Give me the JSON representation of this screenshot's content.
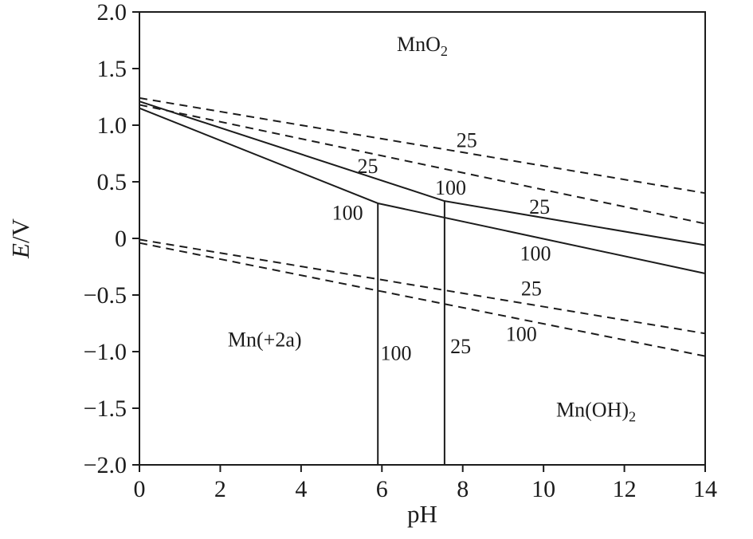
{
  "figure": {
    "background": "#ffffff",
    "line_color": "#1c1c1c"
  },
  "chart_data": {
    "type": "line",
    "title": "",
    "xlabel": "pH",
    "ylabel": "E/V",
    "ylabel_parts": [
      {
        "t": "E",
        "italic": true
      },
      {
        "t": "/V"
      }
    ],
    "xlim": [
      0,
      14
    ],
    "ylim": [
      -2.0,
      2.0
    ],
    "grid": false,
    "legend": "none",
    "frame": true,
    "xticks": {
      "values": [
        0,
        2,
        4,
        6,
        8,
        10,
        12,
        14
      ],
      "labels": [
        "0",
        "2",
        "4",
        "6",
        "8",
        "10",
        "12",
        "14"
      ]
    },
    "yticks": {
      "values": [
        2.0,
        1.5,
        1.0,
        0.5,
        0,
        -0.5,
        -1.0,
        -1.5,
        -2.0
      ],
      "labels": [
        "2.0",
        "1.5",
        "1.0",
        "0.5",
        "0",
        "−0.5",
        "−1.0",
        "−1.5",
        "−2.0"
      ]
    },
    "series": [
      {
        "name": "upper-dashed-25",
        "style": "dashed",
        "temperature_label": "25",
        "points": [
          [
            0,
            1.24
          ],
          [
            14,
            0.4
          ]
        ]
      },
      {
        "name": "upper-dashed-100",
        "style": "dashed",
        "temperature_label": "100",
        "points": [
          [
            0,
            1.18
          ],
          [
            14,
            0.13
          ]
        ]
      },
      {
        "name": "solid-boundary-25",
        "style": "solid",
        "temperature_label": "25",
        "points": [
          [
            0,
            1.21
          ],
          [
            7.55,
            0.33
          ],
          [
            14,
            -0.06
          ]
        ]
      },
      {
        "name": "solid-boundary-100",
        "style": "solid",
        "temperature_label": "100",
        "points": [
          [
            0,
            1.15
          ],
          [
            5.9,
            0.31
          ],
          [
            14,
            -0.31
          ]
        ]
      },
      {
        "name": "lower-dashed-25",
        "style": "dashed",
        "temperature_label": "25",
        "points": [
          [
            0,
            -0.01
          ],
          [
            14,
            -0.84
          ]
        ]
      },
      {
        "name": "lower-dashed-100",
        "style": "dashed",
        "temperature_label": "100",
        "points": [
          [
            0,
            -0.04
          ],
          [
            14,
            -1.04
          ]
        ]
      },
      {
        "name": "vertical-boundary-100",
        "style": "solid",
        "temperature_label": "100",
        "points": [
          [
            5.9,
            0.31
          ],
          [
            5.9,
            -2.0
          ]
        ]
      },
      {
        "name": "vertical-boundary-25",
        "style": "solid",
        "temperature_label": "25",
        "points": [
          [
            7.55,
            0.33
          ],
          [
            7.55,
            -2.0
          ]
        ]
      }
    ],
    "annotations": [
      {
        "parts": [
          {
            "t": "MnO"
          },
          {
            "t": "2",
            "sub": true
          }
        ],
        "x": 7.0,
        "y": 1.72
      },
      {
        "parts": [
          {
            "t": "25"
          }
        ],
        "x": 8.1,
        "y": 0.87
      },
      {
        "parts": [
          {
            "t": "25"
          }
        ],
        "x": 5.65,
        "y": 0.64
      },
      {
        "parts": [
          {
            "t": "100"
          }
        ],
        "x": 7.7,
        "y": 0.45
      },
      {
        "parts": [
          {
            "t": "100"
          }
        ],
        "x": 5.15,
        "y": 0.23
      },
      {
        "parts": [
          {
            "t": "25"
          }
        ],
        "x": 9.9,
        "y": 0.28
      },
      {
        "parts": [
          {
            "t": "100"
          }
        ],
        "x": 9.8,
        "y": -0.13
      },
      {
        "parts": [
          {
            "t": "25"
          }
        ],
        "x": 9.7,
        "y": -0.44
      },
      {
        "parts": [
          {
            "t": "100"
          }
        ],
        "x": 9.45,
        "y": -0.84
      },
      {
        "parts": [
          {
            "t": "Mn(+2a)"
          }
        ],
        "x": 3.1,
        "y": -0.89
      },
      {
        "parts": [
          {
            "t": "100"
          }
        ],
        "x": 6.35,
        "y": -1.01
      },
      {
        "parts": [
          {
            "t": "25"
          }
        ],
        "x": 7.95,
        "y": -0.95
      },
      {
        "parts": [
          {
            "t": "Mn(OH)"
          },
          {
            "t": "2",
            "sub": true
          }
        ],
        "x": 11.3,
        "y": -1.51
      }
    ]
  }
}
